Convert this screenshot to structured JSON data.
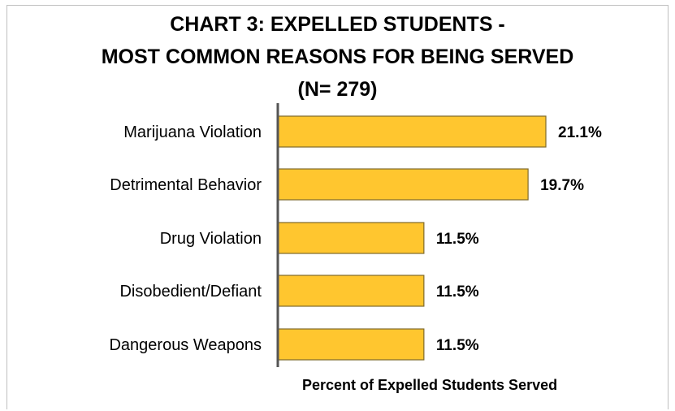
{
  "chart_data": {
    "type": "bar",
    "orientation": "horizontal",
    "title_lines": [
      "CHART 3: EXPELLED STUDENTS -",
      "MOST COMMON REASONS FOR BEING SERVED",
      "(N= 279)"
    ],
    "categories": [
      "Marijuana Violation",
      "Detrimental Behavior",
      "Drug Violation",
      "Disobedient/Defiant",
      "Dangerous Weapons"
    ],
    "values": [
      21.1,
      19.7,
      11.5,
      11.5,
      11.5
    ],
    "value_labels": [
      "21.1%",
      "19.7%",
      "11.5%",
      "11.5%",
      "11.5%"
    ],
    "xlabel": "Percent of Expelled Students Served",
    "ylabel": "",
    "xlim": [
      0,
      22
    ],
    "grid": false,
    "legend": "none",
    "colors": {
      "bar_fill": "#FFC62F",
      "bar_stroke": "#7F6A2A",
      "axis": "#555555"
    }
  }
}
